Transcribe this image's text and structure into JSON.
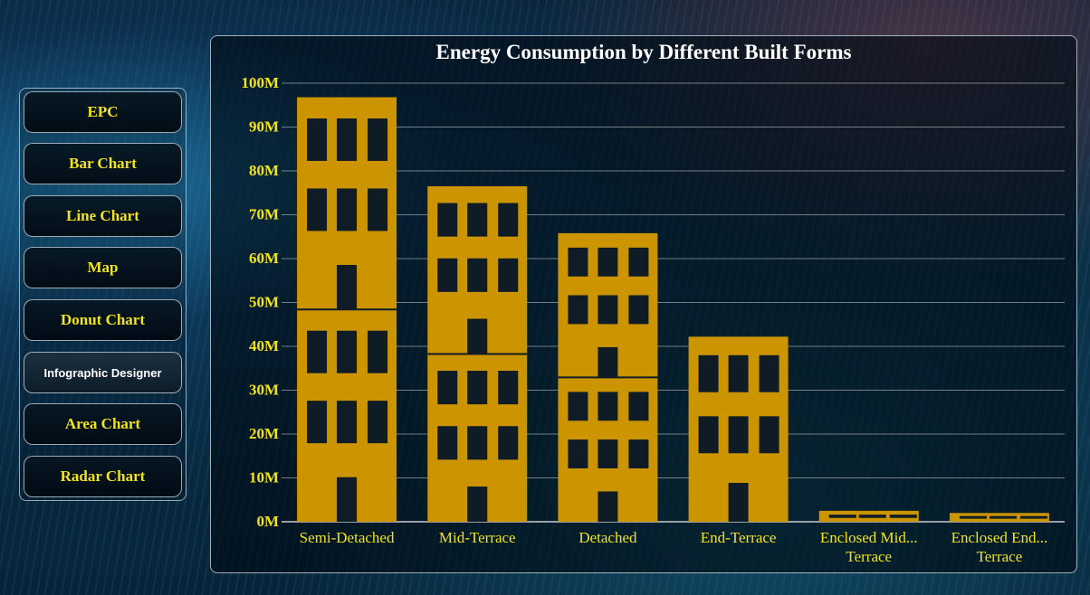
{
  "nav": {
    "items": [
      {
        "label": "EPC"
      },
      {
        "label": "Bar Chart"
      },
      {
        "label": "Line Chart"
      },
      {
        "label": "Map"
      },
      {
        "label": "Donut Chart"
      },
      {
        "label": "Infographic Designer"
      },
      {
        "label": "Area Chart"
      },
      {
        "label": "Radar Chart"
      }
    ],
    "active_index": 5
  },
  "colors": {
    "bar": "#cc9500",
    "window": "#0f1c26",
    "text": "#f2e31a",
    "grid": "#c8ccd0"
  },
  "chart_data": {
    "type": "bar",
    "title": "Energy Consumption by Different Built Forms",
    "xlabel": "",
    "ylabel": "",
    "ylim": [
      0,
      100000000
    ],
    "yticks": [
      {
        "value": 0,
        "label": "0M"
      },
      {
        "value": 10000000,
        "label": "10M"
      },
      {
        "value": 20000000,
        "label": "20M"
      },
      {
        "value": 30000000,
        "label": "30M"
      },
      {
        "value": 40000000,
        "label": "40M"
      },
      {
        "value": 50000000,
        "label": "50M"
      },
      {
        "value": 60000000,
        "label": "60M"
      },
      {
        "value": 70000000,
        "label": "70M"
      },
      {
        "value": 80000000,
        "label": "80M"
      },
      {
        "value": 90000000,
        "label": "90M"
      },
      {
        "value": 100000000,
        "label": "100M"
      }
    ],
    "categories": [
      {
        "line1": "Semi-Detached",
        "line2": ""
      },
      {
        "line1": "Mid-Terrace",
        "line2": ""
      },
      {
        "line1": "Detached",
        "line2": ""
      },
      {
        "line1": "End-Terrace",
        "line2": ""
      },
      {
        "line1": "Enclosed Mid...",
        "line2": "Terrace"
      },
      {
        "line1": "Enclosed End...",
        "line2": "Terrace"
      }
    ],
    "values": [
      96800000,
      76500000,
      65800000,
      42200000,
      2500000,
      2000000
    ],
    "grid": true,
    "legend": "none"
  }
}
